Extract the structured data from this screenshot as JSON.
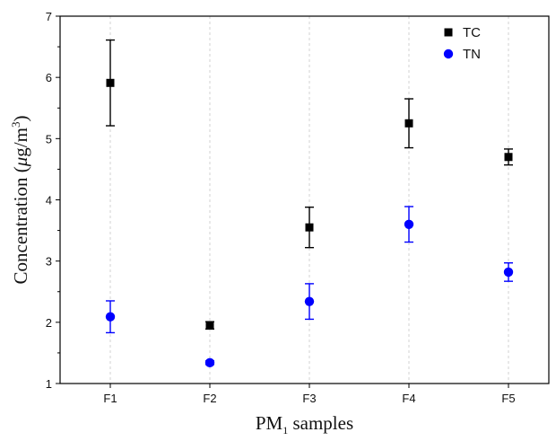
{
  "chart_data": {
    "type": "scatter",
    "xlabel": {
      "main": "PM",
      "sub": "1",
      "rest": " samples"
    },
    "ylabel": {
      "main": "Concentration (",
      "mu": "μ",
      "g": "g/m",
      "sup": "3",
      "close": ")"
    },
    "categories": [
      "F1",
      "F2",
      "F3",
      "F4",
      "F5"
    ],
    "ylim": [
      1,
      7
    ],
    "yticks": [
      "1",
      "2",
      "3",
      "4",
      "5",
      "6",
      "7"
    ],
    "grid": "vertical dashed",
    "legend_position": "top-right",
    "series": [
      {
        "name": "TC",
        "marker": "square",
        "color": "#000000",
        "values": [
          5.91,
          1.95,
          3.55,
          5.25,
          4.7
        ],
        "errors": [
          0.7,
          0.06,
          0.33,
          0.4,
          0.13
        ]
      },
      {
        "name": "TN",
        "marker": "circle",
        "color": "#0000ff",
        "values": [
          2.09,
          1.34,
          2.34,
          3.6,
          2.82
        ],
        "errors": [
          0.26,
          0.03,
          0.29,
          0.29,
          0.15
        ]
      }
    ]
  }
}
